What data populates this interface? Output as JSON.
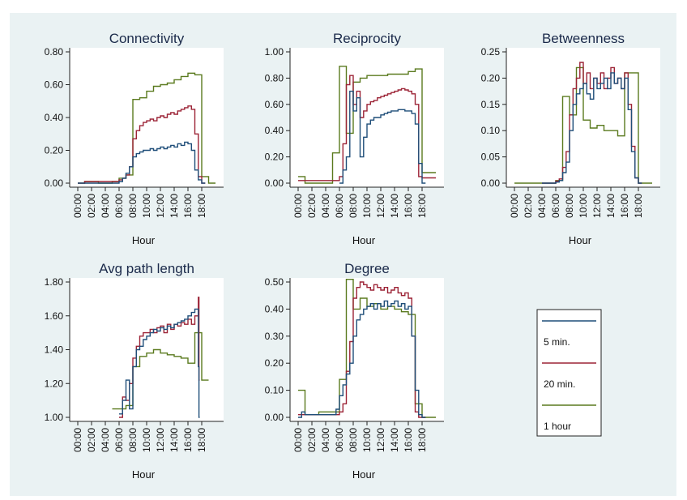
{
  "chart_data": {
    "type": "line",
    "legend": {
      "placement": "bottom-right",
      "entries": [
        {
          "name": "5 min.",
          "color": "#1f4e79"
        },
        {
          "name": "20 min.",
          "color": "#9c2336"
        },
        {
          "name": "1 hour",
          "color": "#5a7a1e"
        }
      ]
    },
    "xlabel": "Hour",
    "xticks": [
      "00:00",
      "02:00",
      "04:00",
      "06:00",
      "08:00",
      "10:00",
      "12:00",
      "14:00",
      "16:00",
      "18:00"
    ],
    "xlim": [
      0,
      20
    ],
    "panels": [
      {
        "title": "Connectivity",
        "ylim": [
          0,
          0.8
        ],
        "yticks": [
          "0.00",
          "0.20",
          "0.40",
          "0.60",
          "0.80"
        ],
        "series": [
          {
            "name": "5 min.",
            "x": [
              0,
              1,
              2,
              3,
              4,
              5,
              6,
              6.5,
              7,
              7.5,
              8,
              8.5,
              9,
              9.5,
              10,
              10.5,
              11,
              11.5,
              12,
              12.5,
              13,
              13.5,
              14,
              14.5,
              15,
              15.5,
              16,
              16.5,
              17,
              17.5,
              18
            ],
            "y": [
              0,
              0,
              0,
              0,
              0,
              0,
              0.01,
              0.03,
              0.06,
              0.1,
              0.16,
              0.18,
              0.19,
              0.2,
              0.2,
              0.21,
              0.2,
              0.21,
              0.22,
              0.21,
              0.22,
              0.23,
              0.22,
              0.24,
              0.23,
              0.25,
              0.24,
              0.2,
              0.08,
              0.02,
              0
            ]
          },
          {
            "name": "20 min.",
            "x": [
              0,
              1,
              2,
              3,
              4,
              5,
              6,
              6.5,
              7,
              7.5,
              8,
              8.5,
              9,
              9.5,
              10,
              10.5,
              11,
              11.5,
              12,
              12.5,
              13,
              13.5,
              14,
              14.5,
              15,
              15.5,
              16,
              16.5,
              17,
              17.5,
              18
            ],
            "y": [
              0,
              0.01,
              0.01,
              0.01,
              0.01,
              0.01,
              0.02,
              0.03,
              0.05,
              0.1,
              0.27,
              0.32,
              0.35,
              0.37,
              0.38,
              0.39,
              0.38,
              0.4,
              0.41,
              0.4,
              0.42,
              0.43,
              0.42,
              0.44,
              0.45,
              0.46,
              0.47,
              0.45,
              0.3,
              0.04,
              0
            ]
          },
          {
            "name": "1 hour",
            "x": [
              0,
              1,
              2,
              3,
              4,
              5,
              6,
              7,
              8,
              9,
              10,
              11,
              12,
              13,
              14,
              15,
              16,
              17,
              18,
              19
            ],
            "y": [
              0,
              0.01,
              0.01,
              0,
              0,
              0.01,
              0.03,
              0.05,
              0.51,
              0.52,
              0.56,
              0.59,
              0.6,
              0.61,
              0.63,
              0.65,
              0.67,
              0.66,
              0.04,
              0
            ]
          }
        ]
      },
      {
        "title": "Reciprocity",
        "ylim": [
          0,
          1.0
        ],
        "yticks": [
          "0.00",
          "0.20",
          "0.40",
          "0.60",
          "0.80",
          "1.00"
        ],
        "series": [
          {
            "name": "5 min.",
            "x": [
              6,
              6.5,
              7,
              7.5,
              8,
              8.5,
              9,
              9.5,
              10,
              10.5,
              11,
              11.5,
              12,
              12.5,
              13,
              13.5,
              14,
              14.5,
              15,
              15.5,
              16,
              16.5,
              17,
              17.5,
              18
            ],
            "y": [
              0,
              0.1,
              0.2,
              0.7,
              0.55,
              0.65,
              0.2,
              0.35,
              0.45,
              0.48,
              0.5,
              0.5,
              0.52,
              0.53,
              0.54,
              0.55,
              0.55,
              0.56,
              0.56,
              0.55,
              0.55,
              0.53,
              0.45,
              0.15,
              0
            ]
          },
          {
            "name": "20 min.",
            "x": [
              0,
              1,
              2,
              3,
              4,
              5,
              6,
              6.5,
              7,
              7.5,
              8,
              8.5,
              9,
              9.5,
              10,
              10.5,
              11,
              11.5,
              12,
              12.5,
              13,
              13.5,
              14,
              14.5,
              15,
              15.5,
              16,
              16.5,
              17,
              17.5,
              18,
              19
            ],
            "y": [
              0.02,
              0.02,
              0.02,
              0.02,
              0.02,
              0.02,
              0.05,
              0.3,
              0.75,
              0.82,
              0.6,
              0.7,
              0.5,
              0.55,
              0.6,
              0.62,
              0.63,
              0.65,
              0.66,
              0.67,
              0.68,
              0.69,
              0.7,
              0.71,
              0.72,
              0.71,
              0.7,
              0.68,
              0.6,
              0.05,
              0.04,
              0.04
            ]
          },
          {
            "name": "1 hour",
            "x": [
              0,
              1,
              2,
              3,
              4,
              5,
              6,
              7,
              8,
              9,
              10,
              11,
              12,
              13,
              14,
              15,
              16,
              17,
              18,
              19
            ],
            "y": [
              0.05,
              0,
              0,
              0,
              0,
              0.23,
              0.89,
              0.38,
              0.77,
              0.8,
              0.82,
              0.82,
              0.82,
              0.83,
              0.83,
              0.83,
              0.85,
              0.87,
              0.08,
              0.08
            ]
          }
        ]
      },
      {
        "title": "Betweenness",
        "ylim": [
          0,
          0.25
        ],
        "yticks": [
          "0.00",
          "0.05",
          "0.10",
          "0.15",
          "0.20",
          "0.25"
        ],
        "series": [
          {
            "name": "5 min.",
            "x": [
              4,
              5,
              6,
              6.5,
              7,
              7.5,
              8,
              8.5,
              9,
              9.5,
              10,
              10.5,
              11,
              11.5,
              12,
              12.5,
              13,
              13.5,
              14,
              14.5,
              15,
              15.5,
              16,
              16.5,
              17,
              17.5,
              18
            ],
            "y": [
              0,
              0,
              0.002,
              0.005,
              0.02,
              0.04,
              0.1,
              0.15,
              0.17,
              0.18,
              0.19,
              0.17,
              0.16,
              0.2,
              0.18,
              0.19,
              0.2,
              0.18,
              0.21,
              0.19,
              0.2,
              0.18,
              0.2,
              0.14,
              0.06,
              0.01,
              0
            ]
          },
          {
            "name": "20 min.",
            "x": [
              4,
              5,
              6,
              6.5,
              7,
              7.5,
              8,
              8.5,
              9,
              9.5,
              10,
              10.5,
              11,
              11.5,
              12,
              12.5,
              13,
              13.5,
              14,
              14.5,
              15,
              15.5,
              16,
              16.5,
              17,
              17.5,
              18
            ],
            "y": [
              0,
              0,
              0.004,
              0.008,
              0.03,
              0.06,
              0.13,
              0.18,
              0.2,
              0.23,
              0.19,
              0.21,
              0.18,
              0.2,
              0.19,
              0.21,
              0.18,
              0.2,
              0.22,
              0.19,
              0.2,
              0.18,
              0.21,
              0.15,
              0.07,
              0.01,
              0
            ]
          },
          {
            "name": "1 hour",
            "x": [
              0,
              1,
              2,
              3,
              4,
              5,
              6,
              7,
              8,
              9,
              10,
              11,
              12,
              13,
              14,
              15,
              16,
              17,
              18,
              19
            ],
            "y": [
              0,
              0,
              0,
              0,
              0,
              0,
              0.005,
              0.165,
              0.13,
              0.22,
              0.12,
              0.105,
              0.11,
              0.1,
              0.1,
              0.09,
              0.21,
              0.21,
              0,
              0
            ]
          }
        ]
      },
      {
        "title": "Avg path length",
        "ylim": [
          1.0,
          1.8
        ],
        "yticks": [
          "1.00",
          "1.20",
          "1.40",
          "1.60",
          "1.80"
        ],
        "series": [
          {
            "name": "5 min.",
            "x": [
              6,
              6.5,
              7,
              7.5,
              8,
              8.5,
              9,
              9.5,
              10,
              10.5,
              11,
              11.5,
              12,
              12.5,
              13,
              13.5,
              14,
              14.5,
              15,
              15.5,
              16,
              16.5,
              17,
              17.5,
              17.6
            ],
            "y": [
              1.02,
              1.1,
              1.22,
              1.05,
              1.3,
              1.4,
              1.42,
              1.46,
              1.48,
              1.5,
              1.52,
              1.51,
              1.53,
              1.52,
              1.54,
              1.53,
              1.55,
              1.56,
              1.57,
              1.58,
              1.6,
              1.62,
              1.64,
              1.3,
              1.0
            ]
          },
          {
            "name": "20 min.",
            "x": [
              6,
              6.5,
              7,
              7.5,
              8,
              8.5,
              9,
              9.5,
              10,
              10.5,
              11,
              11.5,
              12,
              12.5,
              13,
              13.5,
              14,
              14.5,
              15,
              15.5,
              16,
              16.5,
              17,
              17.5,
              17.6
            ],
            "y": [
              1.0,
              1.12,
              1.1,
              1.2,
              1.35,
              1.42,
              1.48,
              1.5,
              1.5,
              1.52,
              1.5,
              1.53,
              1.54,
              1.5,
              1.55,
              1.52,
              1.55,
              1.54,
              1.56,
              1.55,
              1.58,
              1.55,
              1.6,
              1.71,
              1.22
            ]
          },
          {
            "name": "1 hour",
            "x": [
              5,
              6,
              7,
              8,
              9,
              10,
              11,
              12,
              13,
              14,
              15,
              16,
              17,
              18
            ],
            "y": [
              1.05,
              1.05,
              1.07,
              1.3,
              1.36,
              1.38,
              1.4,
              1.38,
              1.37,
              1.36,
              1.35,
              1.32,
              1.5,
              1.22
            ]
          }
        ]
      },
      {
        "title": "Degree",
        "ylim": [
          0,
          0.5
        ],
        "yticks": [
          "0.00",
          "0.10",
          "0.20",
          "0.30",
          "0.40",
          "0.50"
        ],
        "series": [
          {
            "name": "5 min.",
            "x": [
              0,
              0.5,
              1,
              1.5,
              2,
              2.5,
              3,
              3.5,
              4,
              4.5,
              5,
              5.5,
              6,
              6.5,
              7,
              7.5,
              8,
              8.5,
              9,
              9.5,
              10,
              10.5,
              11,
              11.5,
              12,
              12.5,
              13,
              13.5,
              14,
              14.5,
              15,
              15.5,
              16,
              16.5,
              17,
              17.5,
              18
            ],
            "y": [
              0,
              0.02,
              0.01,
              0.01,
              0.01,
              0.01,
              0.01,
              0.01,
              0.01,
              0.01,
              0.01,
              0.03,
              0.08,
              0.12,
              0.16,
              0.2,
              0.3,
              0.36,
              0.38,
              0.4,
              0.41,
              0.42,
              0.4,
              0.42,
              0.41,
              0.43,
              0.41,
              0.42,
              0.43,
              0.41,
              0.42,
              0.4,
              0.41,
              0.3,
              0.1,
              0.01,
              0
            ]
          },
          {
            "name": "20 min.",
            "x": [
              0,
              1,
              2,
              3,
              4,
              5,
              6,
              6.5,
              7,
              7.5,
              8,
              8.5,
              9,
              9.5,
              10,
              10.5,
              11,
              11.5,
              12,
              12.5,
              13,
              13.5,
              14,
              14.5,
              15,
              15.5,
              16,
              16.5,
              17,
              17.5,
              18
            ],
            "y": [
              0.01,
              0.01,
              0.01,
              0.01,
              0.01,
              0.01,
              0.02,
              0.05,
              0.17,
              0.28,
              0.44,
              0.48,
              0.5,
              0.49,
              0.48,
              0.47,
              0.49,
              0.48,
              0.47,
              0.48,
              0.46,
              0.47,
              0.48,
              0.46,
              0.45,
              0.46,
              0.44,
              0.3,
              0.02,
              0,
              0
            ]
          },
          {
            "name": "1 hour",
            "x": [
              0,
              1,
              2,
              3,
              4,
              5,
              6,
              7,
              8,
              9,
              10,
              11,
              12,
              13,
              14,
              15,
              16,
              17,
              18,
              19
            ],
            "y": [
              0.1,
              0.01,
              0.01,
              0.02,
              0.02,
              0.02,
              0.14,
              0.51,
              0.4,
              0.44,
              0.41,
              0.42,
              0.4,
              0.41,
              0.4,
              0.39,
              0.38,
              0.05,
              0,
              0
            ]
          }
        ]
      }
    ]
  }
}
